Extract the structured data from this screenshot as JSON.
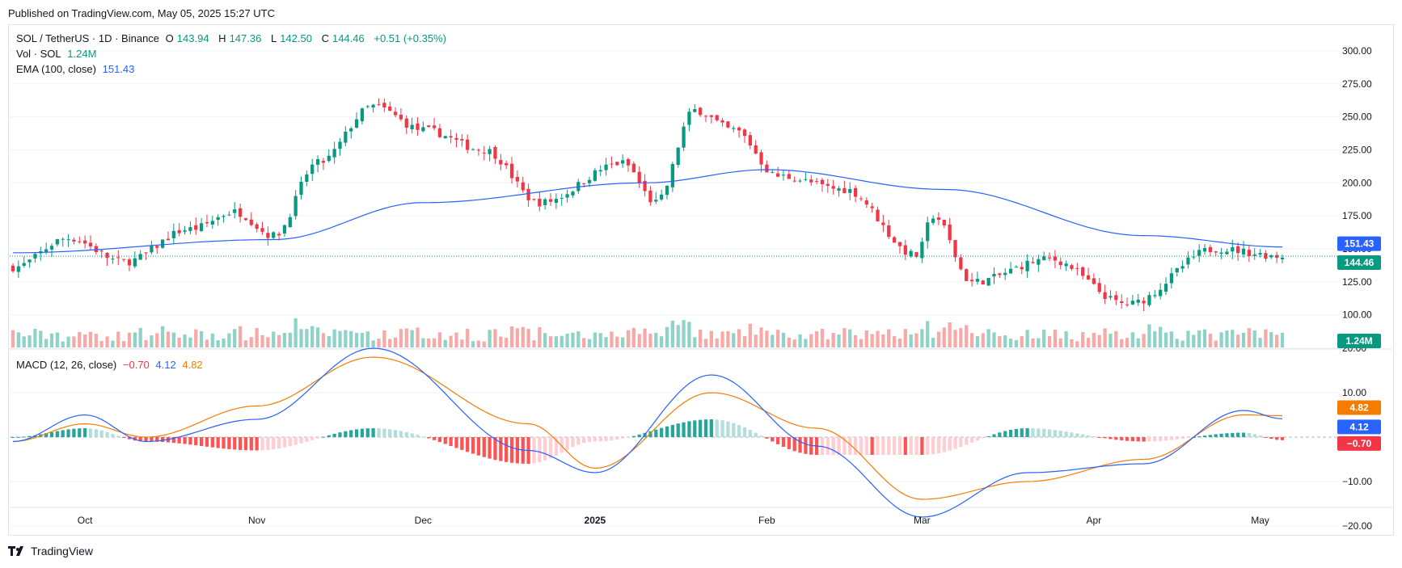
{
  "published": "Published on TradingView.com, May 05, 2025 15:27 UTC",
  "brand": "TradingView",
  "colors": {
    "up": "#089981",
    "down": "#f23645",
    "ema": "#2962ff",
    "signal": "#f57c00",
    "volUp": "#8fd3c6",
    "volDown": "#f7a9a7",
    "histUpFade": "#b2dfdb",
    "histDownFade": "#ffcdd2"
  },
  "legend": {
    "symbol": "SOL / TetherUS · 1D · Binance",
    "o_label": "O",
    "o": "143.94",
    "h_label": "H",
    "h": "147.36",
    "l_label": "L",
    "l": "142.50",
    "c_label": "C",
    "c": "144.46",
    "change": "+0.51 (+0.35%)",
    "vol_label": "Vol · SOL",
    "vol": "1.24M",
    "ema_label": "EMA (100, close)",
    "ema": "151.43",
    "macd_label": "MACD (12, 26, close)",
    "macd_hist": "−0.70",
    "macd": "4.12",
    "macd_signal": "4.82"
  },
  "price_axis": {
    "ticks": [
      "300.00",
      "275.00",
      "250.00",
      "225.00",
      "200.00",
      "175.00",
      "150.00",
      "125.00",
      "100.00"
    ],
    "tick_values": [
      300,
      275,
      250,
      225,
      200,
      175,
      150,
      125,
      100
    ],
    "badges": {
      "ema": "151.43",
      "close": "144.46",
      "vol": "1.24M"
    }
  },
  "macd_axis": {
    "ticks": [
      "20.00",
      "10.00",
      "−10.00",
      "−20.00"
    ],
    "tick_values": [
      20,
      10,
      -10,
      -20
    ],
    "badges": {
      "signal": "4.82",
      "macd": "4.12",
      "hist": "−0.70"
    }
  },
  "time_axis": {
    "labels": [
      "Oct",
      "Nov",
      "Dec",
      "2025",
      "Feb",
      "Mar",
      "Apr",
      "May"
    ],
    "bold_label": "2025"
  },
  "chart_data": {
    "type": "candlestick",
    "symbol": "SOL / TetherUS",
    "interval": "1D",
    "exchange": "Binance",
    "range": "Sep 2024 – May 2025",
    "ylim": [
      90,
      305
    ],
    "key_close_path": [
      {
        "date": "2024-09-18",
        "close": 136
      },
      {
        "date": "2024-09-28",
        "close": 158
      },
      {
        "date": "2024-10-08",
        "close": 140
      },
      {
        "date": "2024-10-20",
        "close": 165
      },
      {
        "date": "2024-10-28",
        "close": 178
      },
      {
        "date": "2024-11-04",
        "close": 160
      },
      {
        "date": "2024-11-12",
        "close": 215
      },
      {
        "date": "2024-11-22",
        "close": 258
      },
      {
        "date": "2024-12-01",
        "close": 240
      },
      {
        "date": "2024-12-12",
        "close": 225
      },
      {
        "date": "2024-12-22",
        "close": 185
      },
      {
        "date": "2025-01-06",
        "close": 215
      },
      {
        "date": "2025-01-12",
        "close": 185
      },
      {
        "date": "2025-01-19",
        "close": 255
      },
      {
        "date": "2025-01-26",
        "close": 240
      },
      {
        "date": "2025-02-03",
        "close": 205
      },
      {
        "date": "2025-02-15",
        "close": 195
      },
      {
        "date": "2025-02-28",
        "close": 145
      },
      {
        "date": "2025-03-03",
        "close": 175
      },
      {
        "date": "2025-03-10",
        "close": 125
      },
      {
        "date": "2025-03-24",
        "close": 142
      },
      {
        "date": "2025-04-07",
        "close": 108
      },
      {
        "date": "2025-04-23",
        "close": 150
      },
      {
        "date": "2025-05-05",
        "close": 144.46
      }
    ],
    "ema100_path": [
      {
        "date": "2024-09-18",
        "value": 147
      },
      {
        "date": "2024-11-04",
        "value": 157
      },
      {
        "date": "2024-12-01",
        "value": 185
      },
      {
        "date": "2025-01-10",
        "value": 200
      },
      {
        "date": "2025-02-01",
        "value": 210
      },
      {
        "date": "2025-03-05",
        "value": 195
      },
      {
        "date": "2025-04-10",
        "value": 160
      },
      {
        "date": "2025-05-05",
        "value": 151.43
      }
    ],
    "macd_path": [
      {
        "date": "2024-09-18",
        "macd": -1,
        "signal": -1
      },
      {
        "date": "2024-10-01",
        "macd": 5,
        "signal": 3
      },
      {
        "date": "2024-10-12",
        "macd": -1,
        "signal": 0
      },
      {
        "date": "2024-11-01",
        "macd": 4,
        "signal": 7
      },
      {
        "date": "2024-11-22",
        "macd": 20,
        "signal": 18
      },
      {
        "date": "2024-12-20",
        "macd": -3,
        "signal": 3
      },
      {
        "date": "2025-01-01",
        "macd": -8,
        "signal": -7
      },
      {
        "date": "2025-01-22",
        "macd": 14,
        "signal": 10
      },
      {
        "date": "2025-02-10",
        "macd": -2,
        "signal": 2
      },
      {
        "date": "2025-03-01",
        "macd": -18,
        "signal": -14
      },
      {
        "date": "2025-03-20",
        "macd": -8,
        "signal": -10
      },
      {
        "date": "2025-04-10",
        "macd": -6,
        "signal": -5
      },
      {
        "date": "2025-04-28",
        "macd": 6,
        "signal": 5
      },
      {
        "date": "2025-05-05",
        "macd": 4.12,
        "signal": 4.82
      }
    ]
  }
}
